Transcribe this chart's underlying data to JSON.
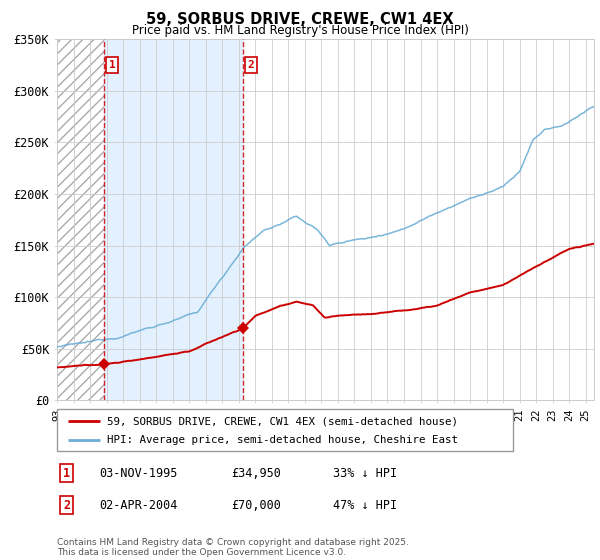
{
  "title": "59, SORBUS DRIVE, CREWE, CW1 4EX",
  "subtitle": "Price paid vs. HM Land Registry's House Price Index (HPI)",
  "legend_line1": "59, SORBUS DRIVE, CREWE, CW1 4EX (semi-detached house)",
  "legend_line2": "HPI: Average price, semi-detached house, Cheshire East",
  "footnote": "Contains HM Land Registry data © Crown copyright and database right 2025.\nThis data is licensed under the Open Government Licence v3.0.",
  "transaction1_date": "03-NOV-1995",
  "transaction1_price": "£34,950",
  "transaction1_hpi": "33% ↓ HPI",
  "transaction2_date": "02-APR-2004",
  "transaction2_price": "£70,000",
  "transaction2_hpi": "47% ↓ HPI",
  "ylim": [
    0,
    350000
  ],
  "yticks": [
    0,
    50000,
    100000,
    150000,
    200000,
    250000,
    300000,
    350000
  ],
  "ytick_labels": [
    "£0",
    "£50K",
    "£100K",
    "£150K",
    "£200K",
    "£250K",
    "£300K",
    "£350K"
  ],
  "hpi_color": "#6baed6",
  "price_color": "#cc0000",
  "vline_color": "#cc0000",
  "marker1_x": 1995.83,
  "marker1_y": 34950,
  "marker2_x": 2004.25,
  "marker2_y": 70000,
  "vline1_x": 1995.83,
  "vline2_x": 2004.25,
  "x_start": 1993.0,
  "x_end": 2025.5,
  "xtick_years": [
    1993,
    1994,
    1995,
    1996,
    1997,
    1998,
    1999,
    2000,
    2001,
    2002,
    2003,
    2004,
    2005,
    2006,
    2007,
    2008,
    2009,
    2010,
    2011,
    2012,
    2013,
    2014,
    2015,
    2016,
    2017,
    2018,
    2019,
    2020,
    2021,
    2022,
    2023,
    2024,
    2025
  ],
  "hpi_anchors_t": [
    1993.0,
    1995.0,
    1996.5,
    1998.0,
    2000.0,
    2001.5,
    2004.25,
    2005.5,
    2007.5,
    2008.8,
    2009.5,
    2010.5,
    2012.0,
    2014.0,
    2016.0,
    2017.5,
    2019.0,
    2020.0,
    2021.0,
    2021.8,
    2022.5,
    2023.5,
    2024.5,
    2025.4
  ],
  "hpi_anchors_v": [
    52000,
    55000,
    60000,
    68000,
    78000,
    85000,
    148000,
    165000,
    178000,
    165000,
    150000,
    155000,
    158000,
    168000,
    185000,
    197000,
    205000,
    210000,
    225000,
    255000,
    265000,
    268000,
    278000,
    287000
  ],
  "price_anchors_t": [
    1993.0,
    1995.0,
    1995.83,
    1997.5,
    1999.5,
    2001.0,
    2003.5,
    2004.25,
    2005.0,
    2006.5,
    2007.5,
    2008.5,
    2009.2,
    2010.0,
    2012.0,
    2014.0,
    2016.0,
    2018.0,
    2020.0,
    2022.0,
    2024.0,
    2025.4
  ],
  "price_anchors_v": [
    32000,
    33500,
    34950,
    38000,
    44000,
    48000,
    65000,
    70000,
    82000,
    92000,
    95000,
    92000,
    80000,
    82000,
    84000,
    87000,
    92000,
    105000,
    112000,
    130000,
    147000,
    151000
  ]
}
